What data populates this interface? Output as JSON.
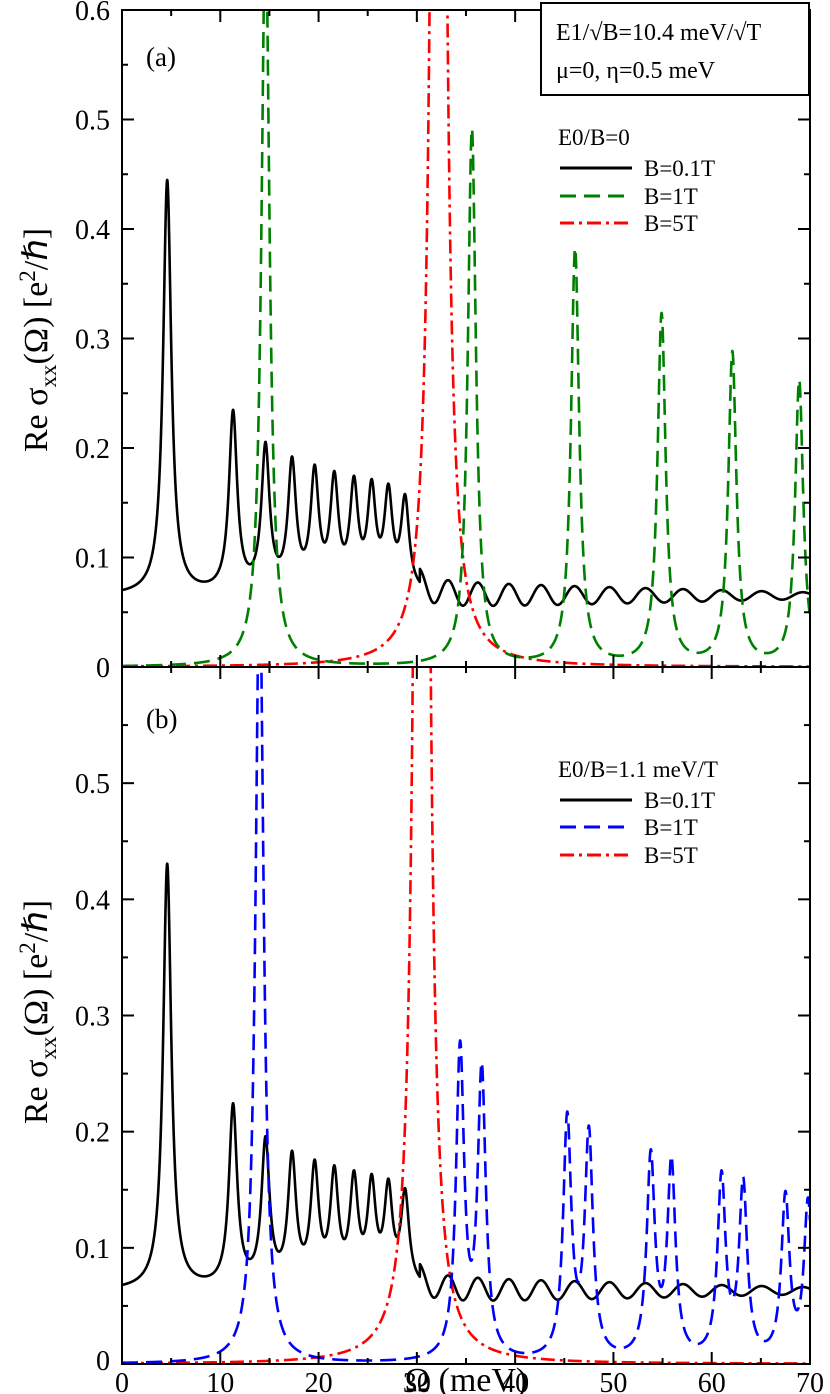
{
  "chart_data": [
    {
      "type": "line",
      "panel_label": "(a)",
      "xlim": [
        0,
        70
      ],
      "ylim": [
        0,
        0.6
      ],
      "x_ticks": [
        0,
        10,
        20,
        30,
        40,
        50,
        60,
        70
      ],
      "y_ticks": [
        "0",
        "0.1",
        "0.2",
        "0.3",
        "0.4",
        "0.5",
        "0.6"
      ],
      "ylabel": "Re σxx(Ω) [e²/ℏ]",
      "legend_title": "E0/B=0",
      "legend_position": "right",
      "info_box": {
        "line1": "E1/√B=10.4 meV/√T",
        "line2": "μ=0, η=0.5 meV"
      },
      "series": [
        {
          "name": "B=0.1T",
          "color": "#000000",
          "style": "solid",
          "background": 0.065,
          "peaks": [
            [
              4.6,
              0.378
            ],
            [
              11.3,
              0.163
            ],
            [
              14.6,
              0.13
            ],
            [
              17.3,
              0.114
            ],
            [
              19.6,
              0.104
            ],
            [
              21.6,
              0.097
            ],
            [
              23.6,
              0.092
            ],
            [
              25.4,
              0.088
            ],
            [
              27.1,
              0.085
            ],
            [
              28.8,
              0.082
            ]
          ],
          "dense_start": 30.3,
          "dense_amp_start": 0.012,
          "dense_amp_end": 0.003
        },
        {
          "name": "B=1T",
          "color": "#008000",
          "style": "dashed",
          "background": 0.0,
          "peaks": [
            [
              14.6,
              0.68
            ],
            [
              35.6,
              0.49
            ],
            [
              46.1,
              0.38
            ],
            [
              54.9,
              0.32
            ],
            [
              62.1,
              0.285
            ],
            [
              68.9,
              0.26
            ]
          ]
        },
        {
          "name": "B=5T",
          "color": "#ff0000",
          "style": "dashdot",
          "background": 0.0,
          "peaks": [
            [
              32.2,
              2.6
            ]
          ]
        }
      ]
    },
    {
      "type": "line",
      "panel_label": "(b)",
      "xlim": [
        0,
        70
      ],
      "ylim": [
        0,
        0.6
      ],
      "x_ticks": [
        0,
        10,
        20,
        30,
        40,
        50,
        60,
        70
      ],
      "y_ticks": [
        "0",
        "0.1",
        "0.2",
        "0.3",
        "0.4",
        "0.5"
      ],
      "xlabel": "Ω (meV)",
      "ylabel": "Re σxx(Ω) [e²/ℏ]",
      "legend_title": "E0/B=1.1 meV/T",
      "legend_position": "right",
      "series": [
        {
          "name": "B=0.1T",
          "color": "#000000",
          "style": "solid",
          "background": 0.063,
          "peaks": [
            [
              4.6,
              0.366
            ],
            [
              11.3,
              0.155
            ],
            [
              14.6,
              0.123
            ],
            [
              17.3,
              0.108
            ],
            [
              19.6,
              0.098
            ],
            [
              21.6,
              0.092
            ],
            [
              23.6,
              0.087
            ],
            [
              25.4,
              0.083
            ],
            [
              27.1,
              0.08
            ],
            [
              28.8,
              0.078
            ]
          ],
          "dense_start": 30.3,
          "dense_amp_start": 0.011,
          "dense_amp_end": 0.003
        },
        {
          "name": "B=1T",
          "color": "#0000ff",
          "style": "dashed",
          "background": 0.0,
          "peaks": [
            [
              14.0,
              0.68
            ],
            [
              34.4,
              0.265
            ],
            [
              36.6,
              0.245
            ],
            [
              45.3,
              0.205
            ],
            [
              47.5,
              0.192
            ],
            [
              53.8,
              0.172
            ],
            [
              55.9,
              0.166
            ],
            [
              61.0,
              0.155
            ],
            [
              63.2,
              0.149
            ],
            [
              67.5,
              0.139
            ],
            [
              69.8,
              0.135
            ]
          ]
        },
        {
          "name": "B=5T",
          "color": "#ff0000",
          "style": "dashdot",
          "background": 0.0,
          "peaks": [
            [
              30.5,
              2.6
            ]
          ]
        }
      ]
    }
  ]
}
